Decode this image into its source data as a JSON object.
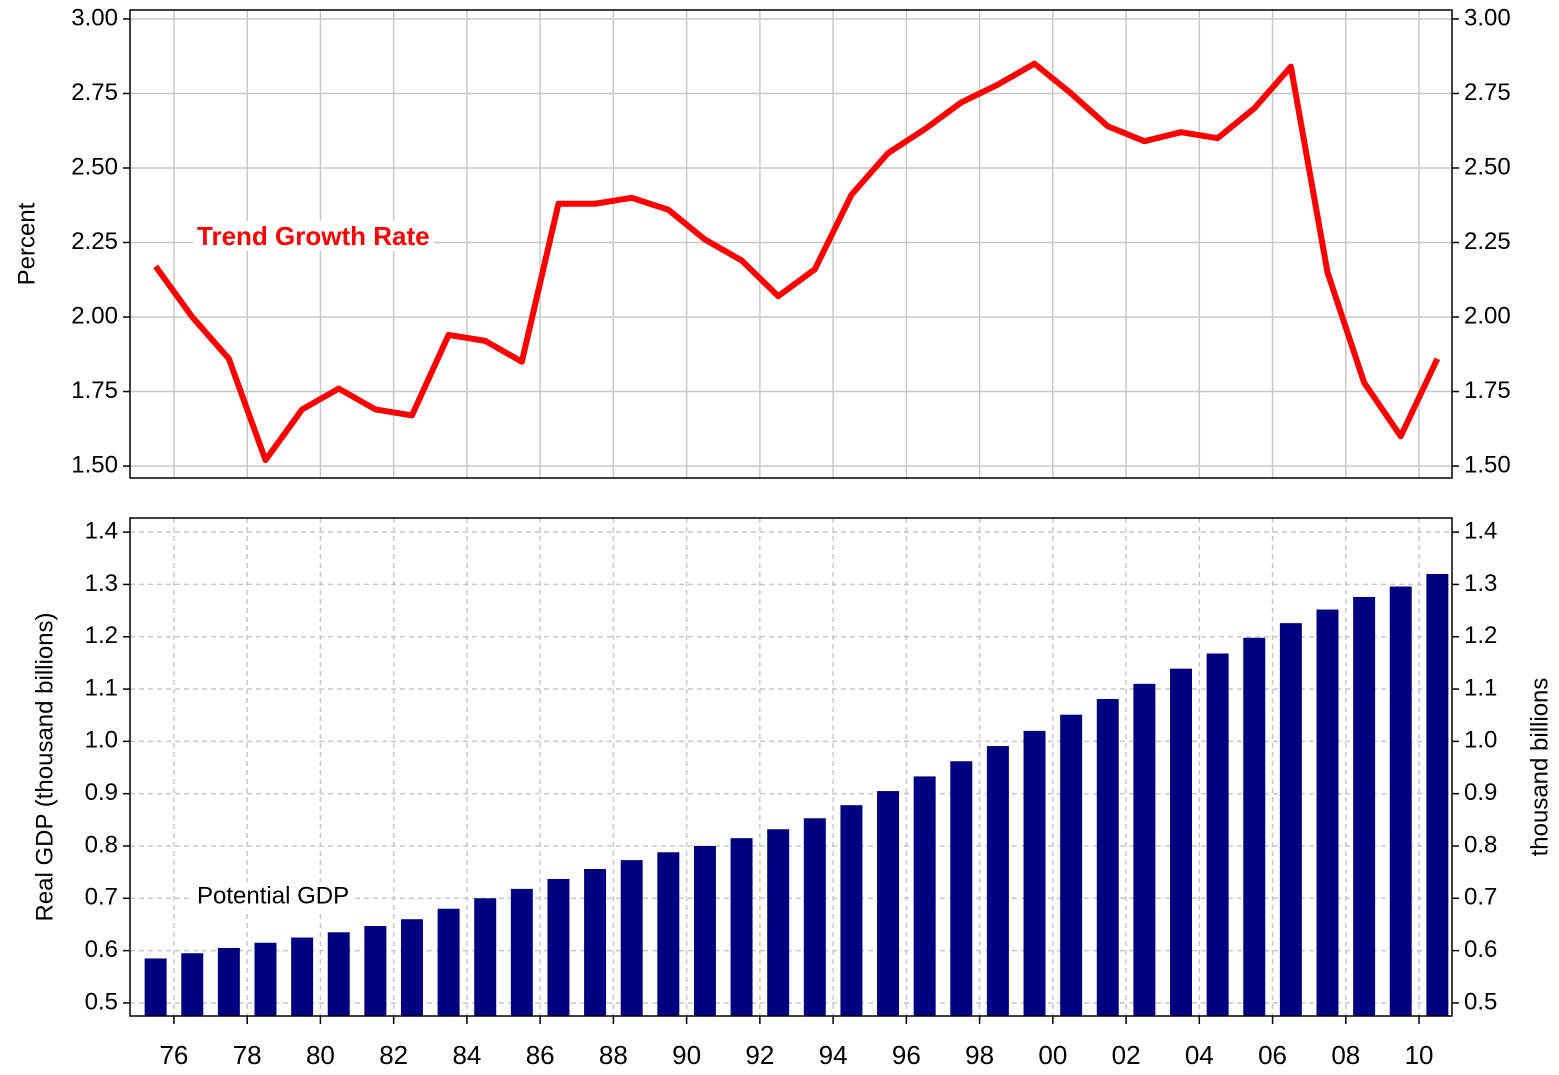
{
  "chart_data": [
    {
      "type": "line",
      "y_label": "Percent",
      "annotation": "Trend Growth Rate",
      "x": [
        1975.5,
        1976.5,
        1977.5,
        1978.5,
        1979.5,
        1980.5,
        1981.5,
        1982.5,
        1983.5,
        1984.5,
        1985.5,
        1986.5,
        1987.5,
        1988.5,
        1989.5,
        1990.5,
        1991.5,
        1992.5,
        1993.5,
        1994.5,
        1995.5,
        1996.5,
        1997.5,
        1998.5,
        1999.5,
        2000.5,
        2001.5,
        2002.5,
        2003.5,
        2004.5,
        2005.5,
        2006.5,
        2007.5,
        2008.5,
        2009.5,
        2010.5
      ],
      "series": [
        {
          "name": "Trend Growth Rate",
          "color": "#ff0000",
          "values": [
            2.17,
            2.0,
            1.86,
            1.52,
            1.69,
            1.76,
            1.69,
            1.67,
            1.94,
            1.92,
            1.85,
            2.38,
            2.38,
            2.4,
            2.36,
            2.26,
            2.19,
            2.07,
            2.16,
            2.41,
            2.55,
            2.63,
            2.72,
            2.78,
            2.85,
            2.75,
            2.64,
            2.59,
            2.62,
            2.6,
            2.7,
            2.84,
            2.15,
            1.78,
            1.6,
            1.86
          ]
        }
      ],
      "xlim": [
        1974.8,
        2010.9
      ],
      "ylim": [
        1.46,
        3.03
      ],
      "yticks": [
        {
          "value": 1.5,
          "label": "1.50"
        },
        {
          "value": 1.75,
          "label": "1.75"
        },
        {
          "value": 2.0,
          "label": "2.00"
        },
        {
          "value": 2.25,
          "label": "2.25"
        },
        {
          "value": 2.5,
          "label": "2.50"
        },
        {
          "value": 2.75,
          "label": "2.75"
        },
        {
          "value": 3.0,
          "label": "3.00"
        }
      ],
      "grid": true
    },
    {
      "type": "bar",
      "y_label": "Real GDP (thousand billions)",
      "y2_label": "thousand billions",
      "annotation": "Potential GDP",
      "x": [
        1975.5,
        1976.5,
        1977.5,
        1978.5,
        1979.5,
        1980.5,
        1981.5,
        1982.5,
        1983.5,
        1984.5,
        1985.5,
        1986.5,
        1987.5,
        1988.5,
        1989.5,
        1990.5,
        1991.5,
        1992.5,
        1993.5,
        1994.5,
        1995.5,
        1996.5,
        1997.5,
        1998.5,
        1999.5,
        2000.5,
        2001.5,
        2002.5,
        2003.5,
        2004.5,
        2005.5,
        2006.5,
        2007.5,
        2008.5,
        2009.5,
        2010.5
      ],
      "series": [
        {
          "name": "Potential GDP",
          "color": "#000080",
          "values": [
            0.585,
            0.595,
            0.605,
            0.615,
            0.625,
            0.635,
            0.647,
            0.66,
            0.68,
            0.7,
            0.718,
            0.737,
            0.756,
            0.773,
            0.788,
            0.8,
            0.815,
            0.832,
            0.853,
            0.878,
            0.905,
            0.933,
            0.962,
            0.991,
            1.02,
            1.051,
            1.081,
            1.11,
            1.139,
            1.168,
            1.198,
            1.226,
            1.252,
            1.276,
            1.296,
            1.32
          ]
        }
      ],
      "xlim": [
        1974.8,
        2010.9
      ],
      "xticks": [
        {
          "value": 1976,
          "label": "76"
        },
        {
          "value": 1978,
          "label": "78"
        },
        {
          "value": 1980,
          "label": "80"
        },
        {
          "value": 1982,
          "label": "82"
        },
        {
          "value": 1984,
          "label": "84"
        },
        {
          "value": 1986,
          "label": "86"
        },
        {
          "value": 1988,
          "label": "88"
        },
        {
          "value": 1990,
          "label": "90"
        },
        {
          "value": 1992,
          "label": "92"
        },
        {
          "value": 1994,
          "label": "94"
        },
        {
          "value": 1996,
          "label": "96"
        },
        {
          "value": 1998,
          "label": "98"
        },
        {
          "value": 2000,
          "label": "00"
        },
        {
          "value": 2002,
          "label": "02"
        },
        {
          "value": 2004,
          "label": "04"
        },
        {
          "value": 2006,
          "label": "06"
        },
        {
          "value": 2008,
          "label": "08"
        },
        {
          "value": 2010,
          "label": "10"
        }
      ],
      "ylim": [
        0.475,
        1.427
      ],
      "yticks": [
        0.5,
        0.6,
        0.7,
        0.8,
        0.9,
        {
          "value": 1.0,
          "label": "1.0"
        },
        1.1,
        1.2,
        1.3,
        1.4
      ],
      "grid": true,
      "grid_style": "dashed"
    }
  ]
}
